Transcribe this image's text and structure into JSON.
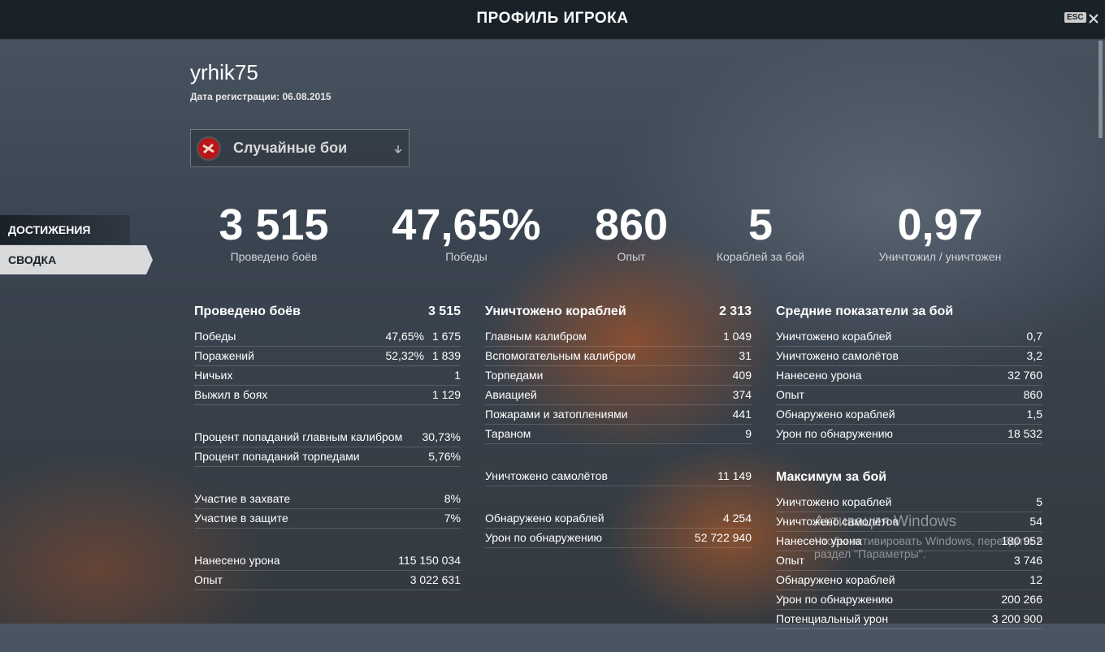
{
  "header": {
    "title": "ПРОФИЛЬ ИГРОКА",
    "esc": "ESC"
  },
  "player": {
    "name": "yrhik75",
    "registration": "Дата регистрации: 06.08.2015"
  },
  "mode_selector": {
    "label": "Случайные бои"
  },
  "sidebar": [
    "ДОСТИЖЕНИЯ",
    "СВОДКА"
  ],
  "summary": [
    {
      "value": "3 515",
      "label": "Проведено боёв"
    },
    {
      "value": "47,65%",
      "label": "Победы"
    },
    {
      "value": "860",
      "label": "Опыт"
    },
    {
      "value": "5",
      "label": "Кораблей за бой"
    },
    {
      "value": "0,97",
      "label": "Уничтожил / уничтожен"
    }
  ],
  "columns": [
    [
      {
        "title": "Проведено боёв",
        "value": "3 515",
        "rows": [
          {
            "label": "Победы",
            "pct": "47,65%",
            "value": "1 675"
          },
          {
            "label": "Поражений",
            "pct": "52,32%",
            "value": "1 839"
          },
          {
            "label": "Ничьих",
            "value": "1"
          },
          {
            "label": "Выжил в боях",
            "value": "1 129"
          }
        ]
      },
      {
        "rows": [
          {
            "label": "Процент попаданий главным калибром",
            "value": "30,73%"
          },
          {
            "label": "Процент попаданий торпедами",
            "value": "5,76%"
          }
        ]
      },
      {
        "rows": [
          {
            "label": "Участие в захвате",
            "value": "8%"
          },
          {
            "label": "Участие в защите",
            "value": "7%"
          }
        ]
      },
      {
        "rows": [
          {
            "label": "Нанесено урона",
            "value": "115 150 034"
          },
          {
            "label": "Опыт",
            "value": "3 022 631"
          }
        ]
      }
    ],
    [
      {
        "title": "Уничтожено кораблей",
        "value": "2 313",
        "rows": [
          {
            "label": "Главным калибром",
            "value": "1 049"
          },
          {
            "label": "Вспомогательным калибром",
            "value": "31"
          },
          {
            "label": "Торпедами",
            "value": "409"
          },
          {
            "label": "Авиацией",
            "value": "374"
          },
          {
            "label": "Пожарами и затоплениями",
            "value": "441"
          },
          {
            "label": "Тараном",
            "value": "9"
          }
        ]
      },
      {
        "rows": [
          {
            "label": "Уничтожено самолётов",
            "value": "11 149"
          }
        ]
      },
      {
        "rows": [
          {
            "label": "Обнаружено кораблей",
            "value": "4 254"
          },
          {
            "label": "Урон по обнаружению",
            "value": "52 722 940"
          }
        ]
      }
    ],
    [
      {
        "title": "Средние показатели за бой",
        "rows": [
          {
            "label": "Уничтожено кораблей",
            "value": "0,7"
          },
          {
            "label": "Уничтожено самолётов",
            "value": "3,2"
          },
          {
            "label": "Нанесено урона",
            "value": "32 760"
          },
          {
            "label": "Опыт",
            "value": "860"
          },
          {
            "label": "Обнаружено кораблей",
            "value": "1,5"
          },
          {
            "label": "Урон по обнаружению",
            "value": "18 532"
          }
        ]
      },
      {
        "title": "Максимум за бой",
        "rows": [
          {
            "label": "Уничтожено кораблей",
            "value": "5"
          },
          {
            "label": "Уничтожено самолётов",
            "value": "54"
          },
          {
            "label": "Нанесено урона",
            "value": "180 952"
          },
          {
            "label": "Опыт",
            "value": "3 746"
          },
          {
            "label": "Обнаружено кораблей",
            "value": "12"
          },
          {
            "label": "Урон по обнаружению",
            "value": "200 266"
          },
          {
            "label": "Потенциальный урон",
            "value": "3 200 900"
          }
        ]
      }
    ]
  ],
  "watermark": {
    "title": "Активация Windows",
    "text": "Чтобы активировать Windows, перейдите в раздел \"Параметры\"."
  }
}
